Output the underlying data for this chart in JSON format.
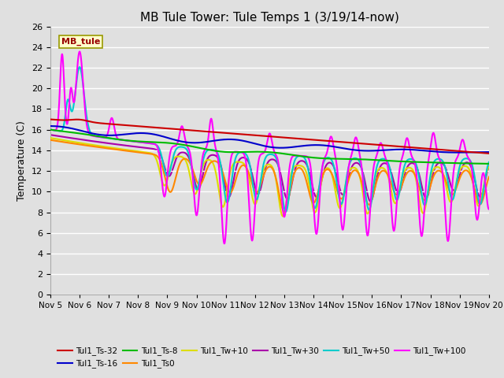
{
  "title": "MB Tule Tower: Tule Temps 1 (3/19/14-now)",
  "ylabel": "Temperature (C)",
  "xlim": [
    0,
    15
  ],
  "ylim": [
    0,
    26
  ],
  "yticks": [
    0,
    2,
    4,
    6,
    8,
    10,
    12,
    14,
    16,
    18,
    20,
    22,
    24,
    26
  ],
  "xtick_labels": [
    "Nov 5",
    "Nov 6",
    "Nov 7",
    "Nov 8",
    "Nov 9",
    "Nov 10",
    "Nov 11",
    "Nov 12",
    "Nov 13",
    "Nov 14",
    "Nov 15",
    "Nov 16",
    "Nov 17",
    "Nov 18",
    "Nov 19",
    "Nov 20"
  ],
  "xtick_positions": [
    0,
    1,
    2,
    3,
    4,
    5,
    6,
    7,
    8,
    9,
    10,
    11,
    12,
    13,
    14,
    15
  ],
  "background_color": "#e0e0e0",
  "plot_bg_color": "#e0e0e0",
  "legend_box_color": "#ffffcc",
  "legend_box_edge": "#999900",
  "series": {
    "Tul1_Ts-32": {
      "color": "#cc0000",
      "lw": 1.5
    },
    "Tul1_Ts-16": {
      "color": "#0000cc",
      "lw": 1.5
    },
    "Tul1_Ts-8": {
      "color": "#00bb00",
      "lw": 1.5
    },
    "Tul1_Ts0": {
      "color": "#ff8800",
      "lw": 1.5
    },
    "Tul1_Tw+10": {
      "color": "#dddd00",
      "lw": 1.5
    },
    "Tul1_Tw+30": {
      "color": "#aa00aa",
      "lw": 1.5
    },
    "Tul1_Tw+50": {
      "color": "#00cccc",
      "lw": 1.5
    },
    "Tul1_Tw+100": {
      "color": "#ff00ff",
      "lw": 1.5
    }
  },
  "legend_order": [
    "Tul1_Ts-32",
    "Tul1_Ts-16",
    "Tul1_Ts-8",
    "Tul1_Ts0",
    "Tul1_Tw+10",
    "Tul1_Tw+30",
    "Tul1_Tw+50",
    "Tul1_Tw+100"
  ]
}
